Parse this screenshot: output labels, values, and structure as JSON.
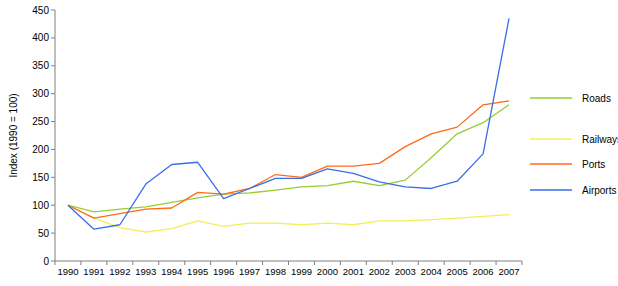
{
  "chart_data": {
    "type": "line",
    "y_label": "Index (1990 = 100)",
    "categories": [
      "1990",
      "1991",
      "1992",
      "1993",
      "1994",
      "1995",
      "1996",
      "1997",
      "1998",
      "1999",
      "2000",
      "2001",
      "2002",
      "2003",
      "2004",
      "2005",
      "2006",
      "2007"
    ],
    "series": [
      {
        "name": "Roads",
        "color": "#99cc33",
        "values": [
          100,
          88,
          93,
          97,
          105,
          113,
          120,
          122,
          127,
          133,
          135,
          143,
          135,
          145,
          185,
          228,
          248,
          280
        ]
      },
      {
        "name": "Railways",
        "color": "#f2ef5a",
        "values": [
          100,
          77,
          60,
          52,
          58,
          72,
          62,
          68,
          68,
          65,
          68,
          65,
          72,
          72,
          74,
          77,
          80,
          83
        ]
      },
      {
        "name": "Ports",
        "color": "#ff6a1a",
        "values": [
          100,
          77,
          85,
          93,
          95,
          123,
          120,
          130,
          155,
          150,
          170,
          170,
          175,
          205,
          228,
          240,
          280,
          287
        ]
      },
      {
        "name": "Airports",
        "color": "#3a6ee8",
        "values": [
          100,
          57,
          65,
          138,
          173,
          177,
          112,
          130,
          148,
          148,
          165,
          157,
          142,
          133,
          130,
          143,
          192,
          435
        ]
      }
    ],
    "ylim": [
      0,
      450
    ],
    "yticks": [
      0,
      50,
      100,
      150,
      200,
      250,
      300,
      350,
      400,
      450
    ],
    "grid": false,
    "legend": "right"
  }
}
